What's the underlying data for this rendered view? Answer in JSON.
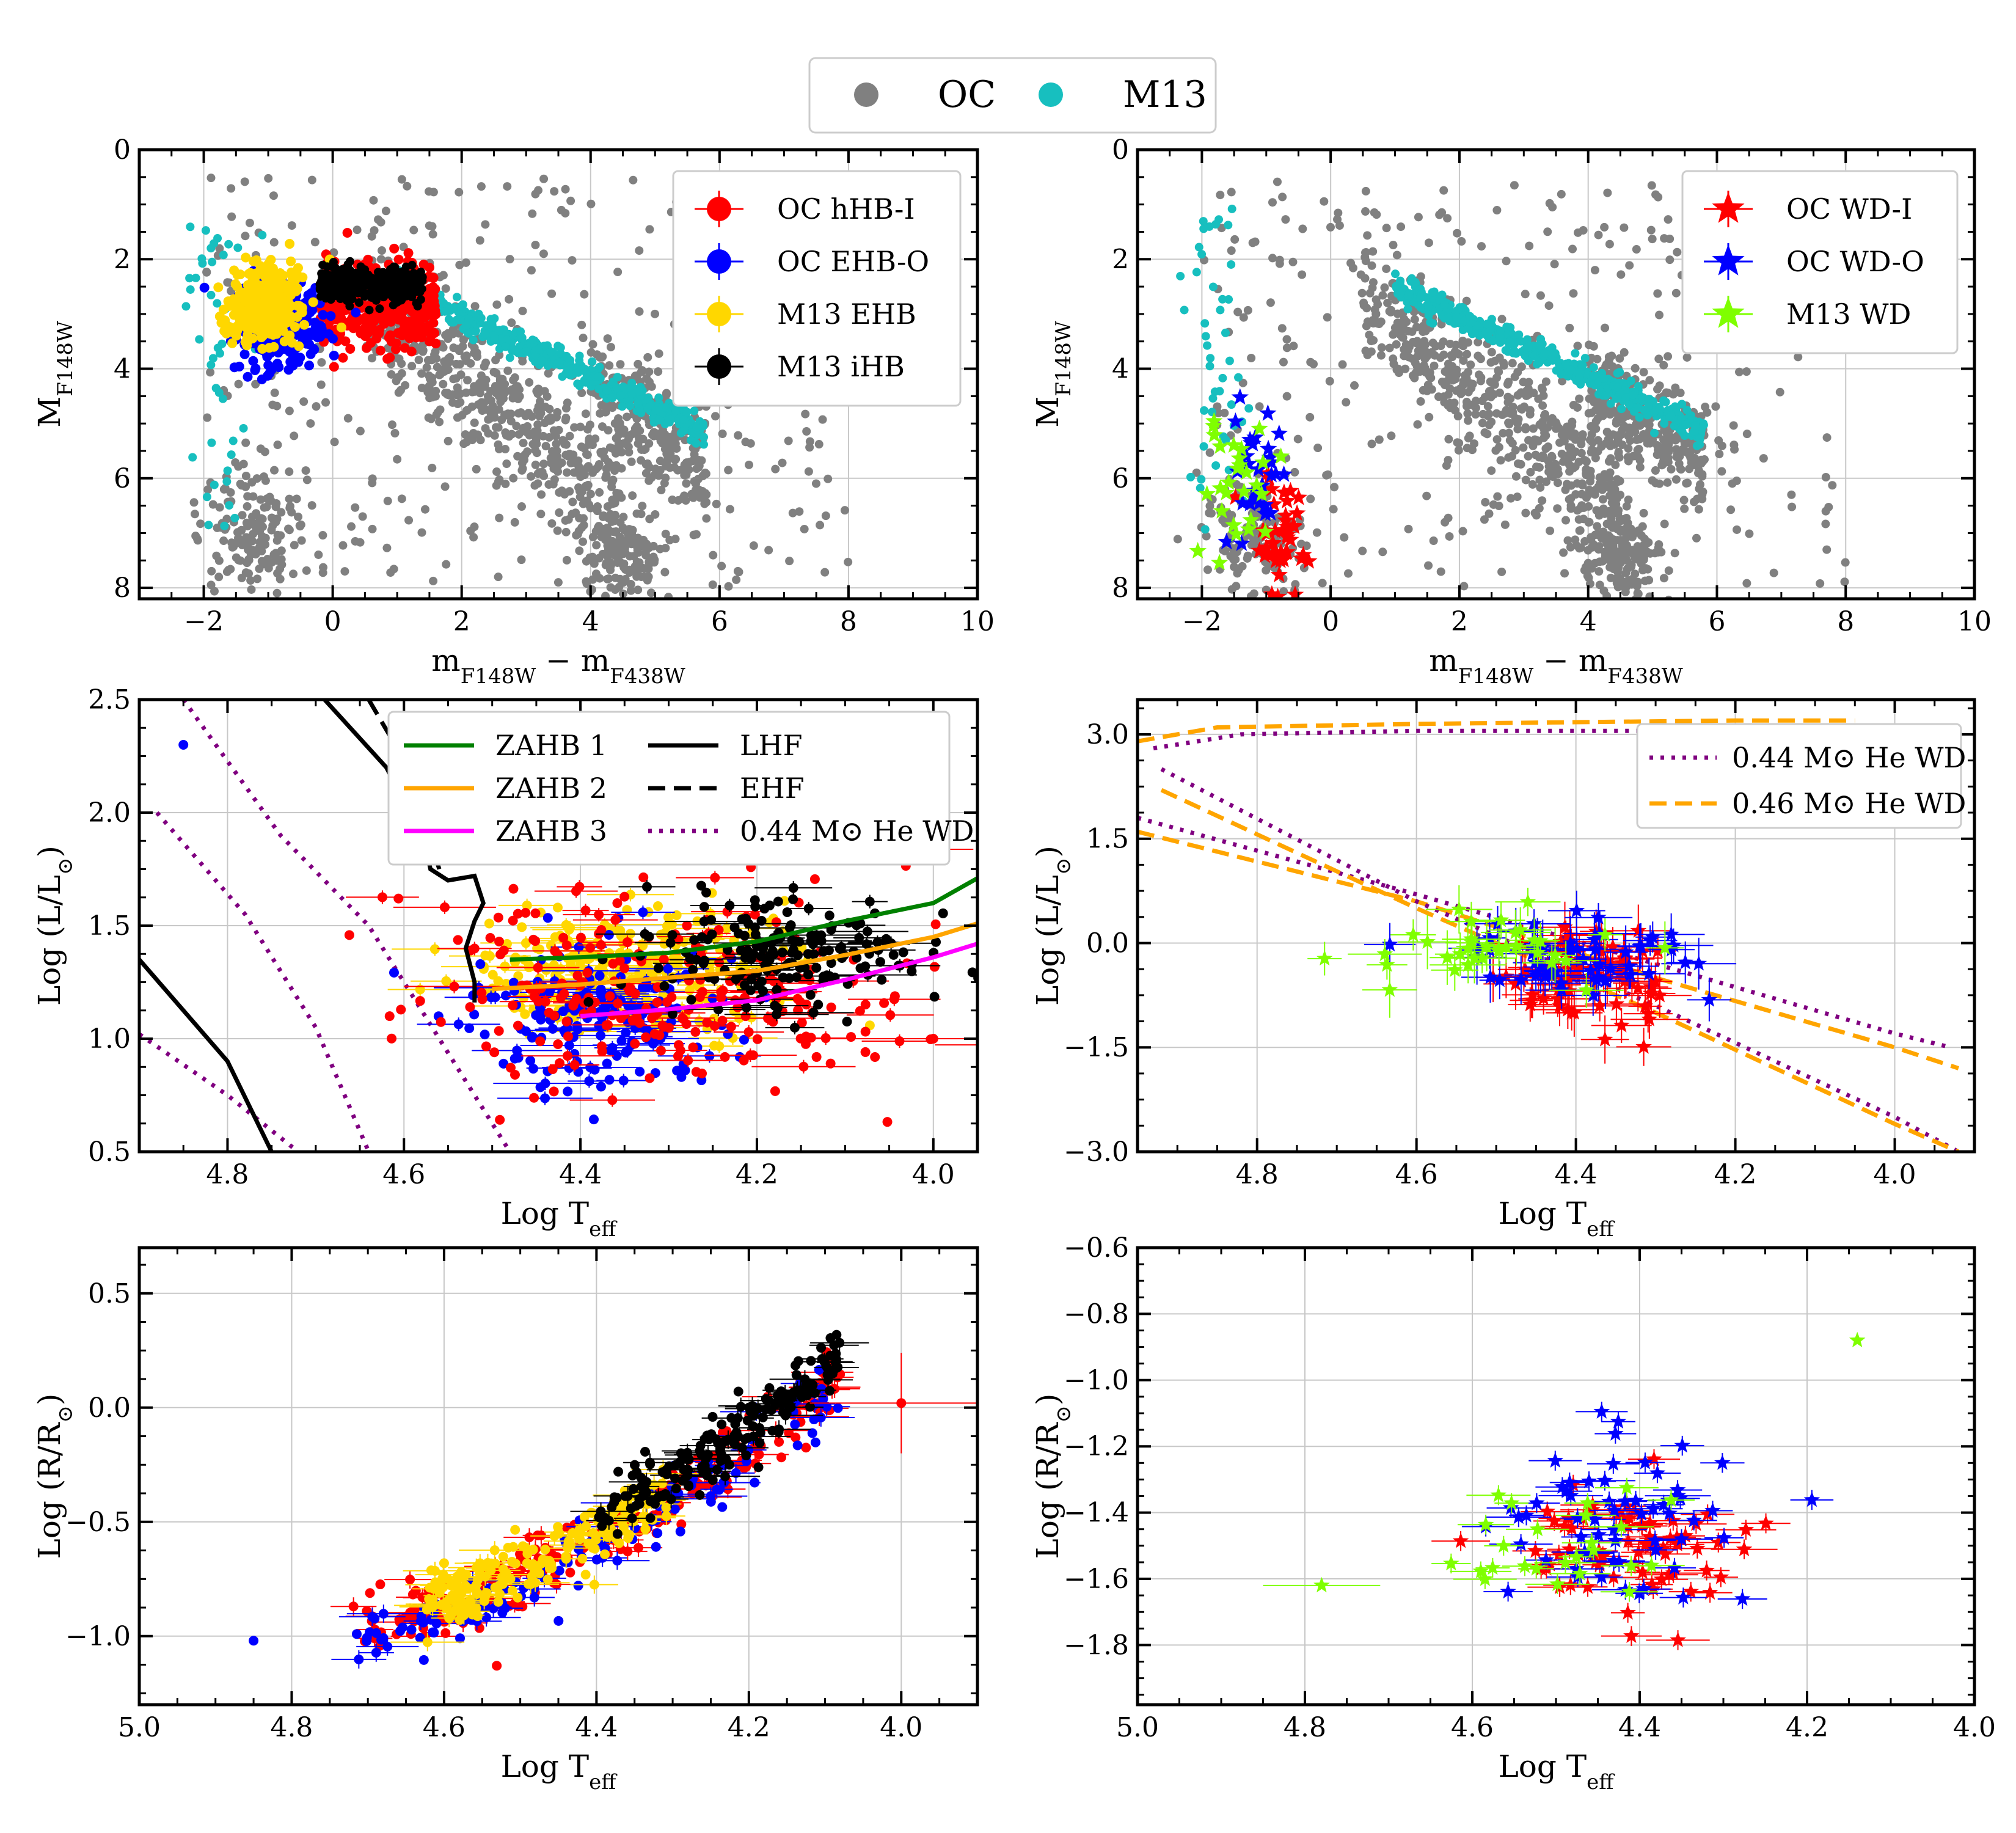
{
  "top_legend": {
    "entries": [
      {
        "label": "OC",
        "color": "#808080"
      },
      {
        "label": "M13",
        "color": "#17bfbf"
      }
    ]
  },
  "colors": {
    "oc_gray": "#808080",
    "m13_cyan": "#17bfbf",
    "red": "#ff0000",
    "blue": "#0000ff",
    "gold": "#ffd700",
    "black": "#000000",
    "green": "#008000",
    "orange": "#ffa500",
    "magenta": "#ff00ff",
    "purple": "#800080",
    "lime": "#7fff00",
    "grid": "#c8c8c8"
  },
  "chart_data": [
    {
      "id": "cmd_hb",
      "type": "scatter",
      "xlabel": "m_F148W − m_F438W",
      "ylabel": "M_F148W",
      "xlim": [
        -3,
        10
      ],
      "ylim": [
        8.2,
        0
      ],
      "xticks": [
        -2,
        0,
        2,
        4,
        6,
        8,
        10
      ],
      "yticks": [
        0,
        2,
        4,
        6,
        8
      ],
      "grid": true,
      "legend_position": "upper-right",
      "legend": [
        {
          "label": "OC hHB-I",
          "color": "#ff0000",
          "marker": "circle"
        },
        {
          "label": "OC EHB-O",
          "color": "#0000ff",
          "marker": "circle"
        },
        {
          "label": "M13 EHB",
          "color": "#ffd700",
          "marker": "circle"
        },
        {
          "label": "M13 iHB",
          "color": "#000000",
          "marker": "circle"
        }
      ]
    },
    {
      "id": "cmd_wd",
      "type": "scatter",
      "xlabel": "m_F148W − m_F438W",
      "ylabel": "M_F148W",
      "xlim": [
        -3,
        10
      ],
      "ylim": [
        8.2,
        0
      ],
      "xticks": [
        -2,
        0,
        2,
        4,
        6,
        8,
        10
      ],
      "yticks": [
        0,
        2,
        4,
        6,
        8
      ],
      "grid": true,
      "legend_position": "upper-right",
      "legend": [
        {
          "label": "OC WD-I",
          "color": "#ff0000",
          "marker": "star"
        },
        {
          "label": "OC WD-O",
          "color": "#0000ff",
          "marker": "star"
        },
        {
          "label": "M13 WD",
          "color": "#7fff00",
          "marker": "star"
        }
      ]
    },
    {
      "id": "hrd_hb",
      "type": "scatter",
      "xlabel": "Log T_eff",
      "ylabel": "Log (L/L_⊙)",
      "xlim": [
        4.9,
        3.95
      ],
      "ylim": [
        0.5,
        2.5
      ],
      "xticks": [
        4.8,
        4.6,
        4.4,
        4.2,
        4.0
      ],
      "yticks": [
        0.5,
        1.0,
        1.5,
        2.0,
        2.5
      ],
      "grid": true,
      "legend_position": "upper-right",
      "legend": [
        {
          "label": "ZAHB 1",
          "color": "#008000",
          "style": "solid"
        },
        {
          "label": "LHF",
          "color": "#000000",
          "style": "solid"
        },
        {
          "label": "ZAHB 2",
          "color": "#ffa500",
          "style": "solid"
        },
        {
          "label": "EHF",
          "color": "#000000",
          "style": "dashed"
        },
        {
          "label": "ZAHB 3",
          "color": "#ff00ff",
          "style": "solid"
        },
        {
          "label": "0.44 M⊙ He WD",
          "color": "#800080",
          "style": "dotted"
        }
      ],
      "curves": [
        {
          "name": "ZAHB 1",
          "points": [
            [
              4.48,
              1.35
            ],
            [
              4.4,
              1.36
            ],
            [
              4.3,
              1.38
            ],
            [
              4.2,
              1.43
            ],
            [
              4.1,
              1.52
            ],
            [
              4.0,
              1.6
            ],
            [
              3.95,
              1.71
            ]
          ]
        },
        {
          "name": "ZAHB 2",
          "points": [
            [
              4.5,
              1.22
            ],
            [
              4.4,
              1.24
            ],
            [
              4.3,
              1.27
            ],
            [
              4.2,
              1.3
            ],
            [
              4.1,
              1.37
            ],
            [
              4.0,
              1.45
            ],
            [
              3.95,
              1.51
            ]
          ]
        },
        {
          "name": "ZAHB 3",
          "points": [
            [
              4.4,
              1.1
            ],
            [
              4.3,
              1.13
            ],
            [
              4.2,
              1.17
            ],
            [
              4.1,
              1.26
            ],
            [
              4.0,
              1.36
            ],
            [
              3.95,
              1.42
            ]
          ]
        },
        {
          "name": "LHF",
          "points": [
            [
              4.69,
              2.5
            ],
            [
              4.62,
              2.2
            ],
            [
              4.6,
              2.05
            ],
            [
              4.58,
              1.93
            ],
            [
              4.57,
              1.75
            ],
            [
              4.55,
              1.7
            ],
            [
              4.52,
              1.72
            ],
            [
              4.51,
              1.6
            ],
            [
              4.52,
              1.52
            ],
            [
              4.53,
              1.4
            ],
            [
              4.52,
              1.25
            ],
            [
              4.52,
              1.16
            ]
          ]
        },
        {
          "name": "EHF",
          "points": [
            [
              4.64,
              2.5
            ],
            [
              4.61,
              2.3
            ],
            [
              4.59,
              2.05
            ],
            [
              4.57,
              1.88
            ],
            [
              4.56,
              1.75
            ]
          ]
        }
      ]
    },
    {
      "id": "hrd_wd",
      "type": "scatter",
      "xlabel": "Log T_eff",
      "ylabel": "Log (L/L_⊙)",
      "xlim": [
        4.95,
        3.9
      ],
      "ylim": [
        -3.0,
        3.5
      ],
      "xticks": [
        4.8,
        4.6,
        4.4,
        4.2,
        4.0
      ],
      "yticks": [
        -3.0,
        -1.5,
        0.0,
        1.5,
        3.0
      ],
      "grid": true,
      "legend_position": "upper-right",
      "legend": [
        {
          "label": "0.44 M⊙ He WD",
          "color": "#800080",
          "style": "dotted"
        },
        {
          "label": "0.46 M⊙ He WD",
          "color": "#ffa500",
          "style": "dashed"
        }
      ]
    },
    {
      "id": "radius_hb",
      "type": "scatter",
      "xlabel": "Log T_eff",
      "ylabel": "Log (R/R_⊙)",
      "xlim": [
        5.0,
        3.9
      ],
      "ylim": [
        -1.3,
        0.7
      ],
      "xticks": [
        5.0,
        4.8,
        4.6,
        4.4,
        4.2,
        4.0
      ],
      "yticks": [
        -1.0,
        -0.5,
        0.0,
        0.5
      ],
      "grid": true
    },
    {
      "id": "radius_wd",
      "type": "scatter",
      "xlabel": "Log T_eff",
      "ylabel": "Log (R/R_⊙)",
      "xlim": [
        5.0,
        4.0
      ],
      "ylim": [
        -1.98,
        -0.6
      ],
      "xticks": [
        5.0,
        4.8,
        4.6,
        4.4,
        4.2,
        4.0
      ],
      "yticks": [
        -1.8,
        -1.6,
        -1.4,
        -1.2,
        -1.0,
        -0.8,
        -0.6
      ],
      "grid": true
    }
  ]
}
